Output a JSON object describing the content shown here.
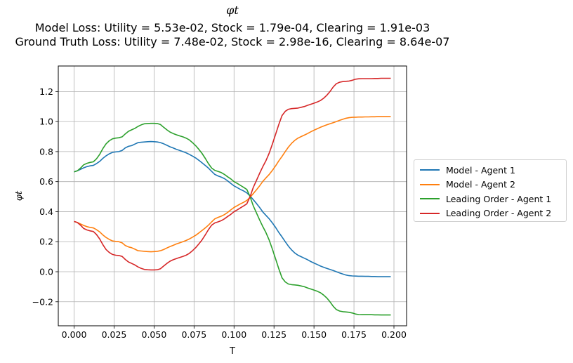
{
  "title": {
    "main": "φt",
    "line1": "Model Loss: Utility = 5.53e-02, Stock = 1.79e-04, Clearing = 1.91e-03",
    "line2": "Ground Truth Loss: Utility = 7.48e-02, Stock = 2.98e-16, Clearing = 8.64e-07"
  },
  "chart_data": {
    "type": "line",
    "xlabel": "T",
    "ylabel": "φt",
    "xlim": [
      -0.0099,
      0.2079
    ],
    "ylim": [
      -0.36,
      1.37
    ],
    "xticks": [
      0.0,
      0.025,
      0.05,
      0.075,
      0.1,
      0.125,
      0.15,
      0.175,
      0.2
    ],
    "xtick_labels": [
      "0.000",
      "0.025",
      "0.050",
      "0.075",
      "0.100",
      "0.125",
      "0.150",
      "0.175",
      "0.200"
    ],
    "yticks": [
      -0.2,
      0.0,
      0.2,
      0.4,
      0.6,
      0.8,
      1.0,
      1.2
    ],
    "ytick_labels": [
      "−0.2",
      "0.0",
      "0.2",
      "0.4",
      "0.6",
      "0.8",
      "1.0",
      "1.2"
    ],
    "grid": true,
    "legend_position": "right, outside",
    "x": [
      0.0,
      0.002,
      0.004,
      0.006,
      0.008,
      0.01,
      0.012,
      0.014,
      0.016,
      0.018,
      0.02,
      0.022,
      0.024,
      0.026,
      0.028,
      0.03,
      0.032,
      0.034,
      0.036,
      0.038,
      0.04,
      0.042,
      0.044,
      0.046,
      0.048,
      0.05,
      0.052,
      0.054,
      0.056,
      0.058,
      0.06,
      0.062,
      0.064,
      0.066,
      0.068,
      0.07,
      0.072,
      0.074,
      0.076,
      0.078,
      0.08,
      0.082,
      0.084,
      0.086,
      0.088,
      0.09,
      0.092,
      0.094,
      0.096,
      0.098,
      0.1,
      0.102,
      0.104,
      0.106,
      0.108,
      0.11,
      0.112,
      0.114,
      0.116,
      0.118,
      0.12,
      0.122,
      0.124,
      0.126,
      0.128,
      0.13,
      0.132,
      0.134,
      0.136,
      0.138,
      0.14,
      0.142,
      0.144,
      0.146,
      0.148,
      0.15,
      0.152,
      0.154,
      0.156,
      0.158,
      0.16,
      0.162,
      0.164,
      0.166,
      0.168,
      0.17,
      0.172,
      0.174,
      0.176,
      0.178,
      0.18,
      0.182,
      0.184,
      0.186,
      0.188,
      0.19,
      0.192,
      0.194,
      0.196,
      0.198
    ],
    "series": [
      {
        "name": "Model - Agent 1",
        "color": "#1f77b4",
        "values": [
          0.665,
          0.672,
          0.682,
          0.692,
          0.7,
          0.705,
          0.708,
          0.72,
          0.735,
          0.755,
          0.772,
          0.785,
          0.795,
          0.798,
          0.8,
          0.808,
          0.825,
          0.835,
          0.84,
          0.85,
          0.86,
          0.862,
          0.864,
          0.866,
          0.867,
          0.866,
          0.864,
          0.86,
          0.852,
          0.842,
          0.832,
          0.824,
          0.815,
          0.808,
          0.8,
          0.792,
          0.782,
          0.77,
          0.758,
          0.742,
          0.725,
          0.708,
          0.69,
          0.668,
          0.648,
          0.638,
          0.63,
          0.62,
          0.605,
          0.588,
          0.572,
          0.56,
          0.548,
          0.538,
          0.525,
          0.505,
          0.48,
          0.455,
          0.428,
          0.398,
          0.375,
          0.352,
          0.325,
          0.295,
          0.262,
          0.232,
          0.2,
          0.17,
          0.145,
          0.125,
          0.11,
          0.1,
          0.09,
          0.08,
          0.068,
          0.058,
          0.048,
          0.038,
          0.03,
          0.022,
          0.015,
          0.008,
          0.0,
          -0.008,
          -0.015,
          -0.022,
          -0.026,
          -0.028,
          -0.029,
          -0.03,
          -0.03,
          -0.031,
          -0.031,
          -0.032,
          -0.032,
          -0.033,
          -0.033,
          -0.033,
          -0.033,
          -0.033
        ]
      },
      {
        "name": "Model - Agent 2",
        "color": "#ff7f0e",
        "values": [
          0.335,
          0.328,
          0.318,
          0.308,
          0.3,
          0.295,
          0.292,
          0.28,
          0.265,
          0.245,
          0.228,
          0.215,
          0.205,
          0.202,
          0.2,
          0.192,
          0.175,
          0.165,
          0.16,
          0.15,
          0.14,
          0.138,
          0.136,
          0.134,
          0.133,
          0.134,
          0.136,
          0.14,
          0.148,
          0.158,
          0.168,
          0.176,
          0.185,
          0.192,
          0.2,
          0.208,
          0.218,
          0.23,
          0.242,
          0.258,
          0.275,
          0.292,
          0.31,
          0.332,
          0.352,
          0.362,
          0.37,
          0.38,
          0.395,
          0.412,
          0.428,
          0.44,
          0.452,
          0.462,
          0.475,
          0.495,
          0.52,
          0.545,
          0.572,
          0.602,
          0.625,
          0.648,
          0.675,
          0.705,
          0.738,
          0.768,
          0.8,
          0.83,
          0.855,
          0.875,
          0.89,
          0.9,
          0.91,
          0.92,
          0.932,
          0.942,
          0.952,
          0.962,
          0.97,
          0.978,
          0.985,
          0.992,
          1.0,
          1.008,
          1.015,
          1.022,
          1.026,
          1.028,
          1.029,
          1.03,
          1.03,
          1.031,
          1.031,
          1.032,
          1.032,
          1.033,
          1.033,
          1.033,
          1.033,
          1.033
        ]
      },
      {
        "name": "Leading Order - Agent 1",
        "color": "#2ca02c",
        "values": [
          0.665,
          0.672,
          0.69,
          0.712,
          0.722,
          0.728,
          0.732,
          0.752,
          0.782,
          0.82,
          0.852,
          0.872,
          0.885,
          0.89,
          0.892,
          0.898,
          0.918,
          0.935,
          0.945,
          0.955,
          0.968,
          0.978,
          0.985,
          0.987,
          0.988,
          0.988,
          0.987,
          0.98,
          0.962,
          0.945,
          0.93,
          0.92,
          0.912,
          0.905,
          0.898,
          0.89,
          0.878,
          0.86,
          0.84,
          0.815,
          0.788,
          0.755,
          0.72,
          0.69,
          0.675,
          0.668,
          0.66,
          0.648,
          0.632,
          0.618,
          0.6,
          0.588,
          0.575,
          0.562,
          0.548,
          0.5,
          0.44,
          0.392,
          0.345,
          0.3,
          0.26,
          0.21,
          0.15,
          0.085,
          0.02,
          -0.04,
          -0.068,
          -0.082,
          -0.086,
          -0.088,
          -0.09,
          -0.095,
          -0.1,
          -0.108,
          -0.115,
          -0.122,
          -0.13,
          -0.14,
          -0.155,
          -0.175,
          -0.2,
          -0.23,
          -0.252,
          -0.262,
          -0.266,
          -0.268,
          -0.27,
          -0.275,
          -0.282,
          -0.285,
          -0.286,
          -0.286,
          -0.286,
          -0.286,
          -0.287,
          -0.287,
          -0.288,
          -0.288,
          -0.288,
          -0.288
        ]
      },
      {
        "name": "Leading Order - Agent 2",
        "color": "#d62728",
        "values": [
          0.335,
          0.328,
          0.31,
          0.288,
          0.278,
          0.272,
          0.268,
          0.248,
          0.218,
          0.18,
          0.148,
          0.128,
          0.115,
          0.11,
          0.108,
          0.102,
          0.082,
          0.065,
          0.055,
          0.045,
          0.032,
          0.022,
          0.015,
          0.013,
          0.012,
          0.012,
          0.013,
          0.02,
          0.038,
          0.055,
          0.07,
          0.08,
          0.088,
          0.095,
          0.102,
          0.11,
          0.122,
          0.14,
          0.16,
          0.185,
          0.212,
          0.245,
          0.28,
          0.31,
          0.325,
          0.332,
          0.34,
          0.352,
          0.368,
          0.382,
          0.4,
          0.412,
          0.425,
          0.438,
          0.452,
          0.5,
          0.56,
          0.608,
          0.655,
          0.7,
          0.74,
          0.79,
          0.85,
          0.915,
          0.98,
          1.04,
          1.068,
          1.082,
          1.086,
          1.088,
          1.09,
          1.095,
          1.1,
          1.108,
          1.115,
          1.122,
          1.13,
          1.14,
          1.155,
          1.175,
          1.2,
          1.23,
          1.252,
          1.262,
          1.266,
          1.268,
          1.27,
          1.275,
          1.282,
          1.285,
          1.286,
          1.286,
          1.286,
          1.286,
          1.287,
          1.287,
          1.288,
          1.288,
          1.288,
          1.288
        ]
      }
    ]
  }
}
